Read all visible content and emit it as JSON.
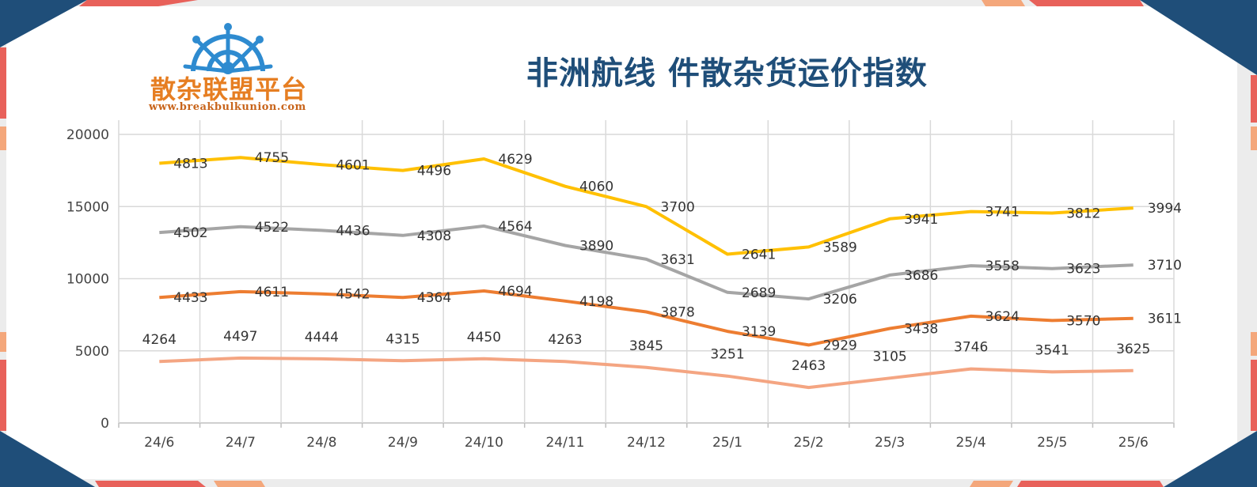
{
  "header": {
    "title": "非洲航线 件散杂货运价指数",
    "logo_text": "散杂联盟平台",
    "logo_url": "www.breakbulkunion.com",
    "logo_icon": "ship-wheel-icon"
  },
  "colors": {
    "brand_orange": "#e67e22",
    "title_blue": "#1f4e79",
    "frame_navy": "#1f4e79",
    "frame_red": "#e8615a",
    "frame_peach": "#f4a77b"
  },
  "chart_data": {
    "type": "line",
    "title": "",
    "xlabel": "",
    "ylabel": "",
    "ylim": [
      0,
      20000
    ],
    "yticks": [
      0,
      5000,
      10000,
      15000,
      20000
    ],
    "grid": true,
    "legend": "none",
    "categories": [
      "24/6",
      "24/7",
      "24/8",
      "24/9",
      "24/10",
      "24/11",
      "24/12",
      "25/1",
      "25/2",
      "25/3",
      "25/4",
      "25/5",
      "25/6"
    ],
    "series": [
      {
        "color": "#ffc000",
        "values": [
          18000,
          18400,
          17900,
          17500,
          18300,
          16400,
          15000,
          11700,
          12200,
          14150,
          14650,
          14550,
          14900
        ],
        "labels": [
          4813,
          4755,
          4601,
          4496,
          4629,
          4060,
          3700,
          2641,
          3589,
          3941,
          3741,
          3812,
          3994
        ]
      },
      {
        "color": "#a5a5a5",
        "values": [
          13200,
          13600,
          13350,
          13000,
          13650,
          12300,
          11350,
          9050,
          8600,
          10250,
          10900,
          10700,
          10950
        ],
        "labels": [
          4502,
          4522,
          4436,
          4308,
          4564,
          3890,
          3631,
          2689,
          3206,
          3686,
          3558,
          3623,
          3710
        ]
      },
      {
        "color": "#ed7d31",
        "values": [
          8700,
          9100,
          8950,
          8700,
          9150,
          8450,
          7700,
          6350,
          5400,
          6550,
          7400,
          7100,
          7250
        ],
        "labels": [
          4433,
          4611,
          4542,
          4364,
          4694,
          4198,
          3878,
          3139,
          2929,
          3438,
          3624,
          3570,
          3611
        ]
      },
      {
        "color": "#f4a582",
        "values": [
          4264,
          4497,
          4444,
          4315,
          4450,
          4263,
          3845,
          3251,
          2463,
          3105,
          3746,
          3541,
          3625
        ],
        "labels": [
          4264,
          4497,
          4444,
          4315,
          4450,
          4263,
          3845,
          3251,
          2463,
          3105,
          3746,
          3541,
          3625
        ]
      }
    ]
  }
}
